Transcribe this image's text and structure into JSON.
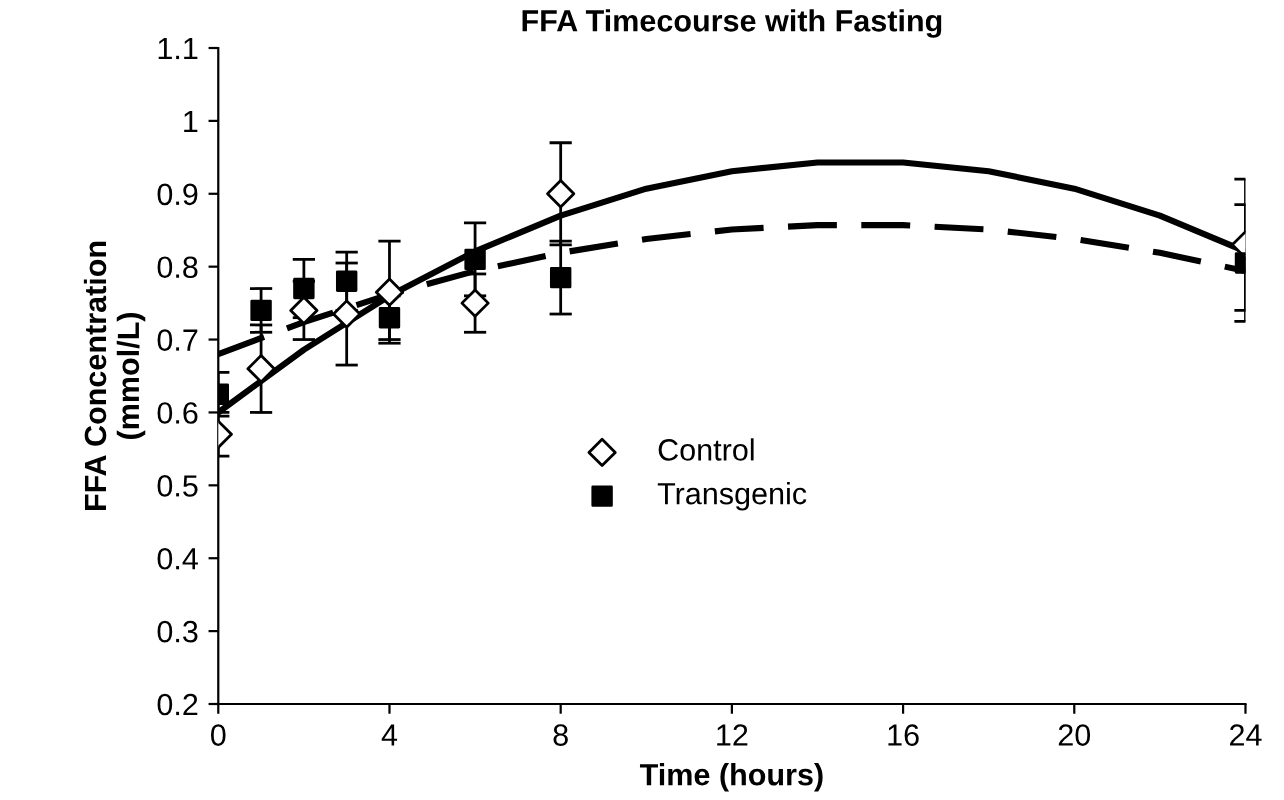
{
  "chart_data": {
    "type": "scatter",
    "title": "FFA Timecourse with Fasting",
    "xlabel": "Time (hours)",
    "ylabel": "FFA Concentration\n(mmol/L)",
    "series": [
      {
        "name": "Control",
        "marker": "diamond",
        "color": "#000000",
        "x": [
          0,
          1,
          2,
          3,
          4,
          6,
          8,
          24
        ],
        "values": [
          0.57,
          0.66,
          0.74,
          0.735,
          0.765,
          0.75,
          0.9,
          0.83
        ],
        "errors": [
          0.03,
          0.06,
          0.04,
          0.07,
          0.07,
          0.04,
          0.07,
          0.09
        ]
      },
      {
        "name": "Transgenic",
        "marker": "square",
        "color": "#000000",
        "x": [
          0,
          1,
          2,
          3,
          4,
          6,
          8,
          24
        ],
        "values": [
          0.625,
          0.74,
          0.77,
          0.78,
          0.73,
          0.81,
          0.785,
          0.805
        ],
        "errors": [
          0.03,
          0.03,
          0.04,
          0.04,
          0.03,
          0.05,
          0.05,
          0.08
        ]
      },
      {
        "type": "line",
        "line_style": "solid",
        "color": "#000000",
        "x": [
          0,
          2,
          4,
          6,
          8,
          10,
          12,
          14,
          16,
          18,
          20,
          22,
          24
        ],
        "values": [
          0.6,
          0.686,
          0.76,
          0.821,
          0.87,
          0.907,
          0.931,
          0.943,
          0.943,
          0.931,
          0.907,
          0.87,
          0.821
        ]
      },
      {
        "type": "line",
        "line_style": "dashed",
        "color": "#000000",
        "x": [
          0,
          2,
          4,
          6,
          8,
          10,
          12,
          14,
          16,
          18,
          20,
          22,
          24
        ],
        "values": [
          0.68,
          0.724,
          0.762,
          0.794,
          0.819,
          0.838,
          0.851,
          0.857,
          0.857,
          0.851,
          0.838,
          0.819,
          0.794
        ]
      }
    ],
    "xlim": [
      0,
      24
    ],
    "xticks": [
      0,
      4,
      8,
      12,
      16,
      20,
      24
    ],
    "ylim": [
      0.2,
      1.1
    ],
    "yticks": [
      0.2,
      0.3,
      0.4,
      0.5,
      0.6,
      0.7,
      0.8,
      0.9,
      1,
      1.1
    ],
    "grid": false,
    "legend": "center right"
  }
}
